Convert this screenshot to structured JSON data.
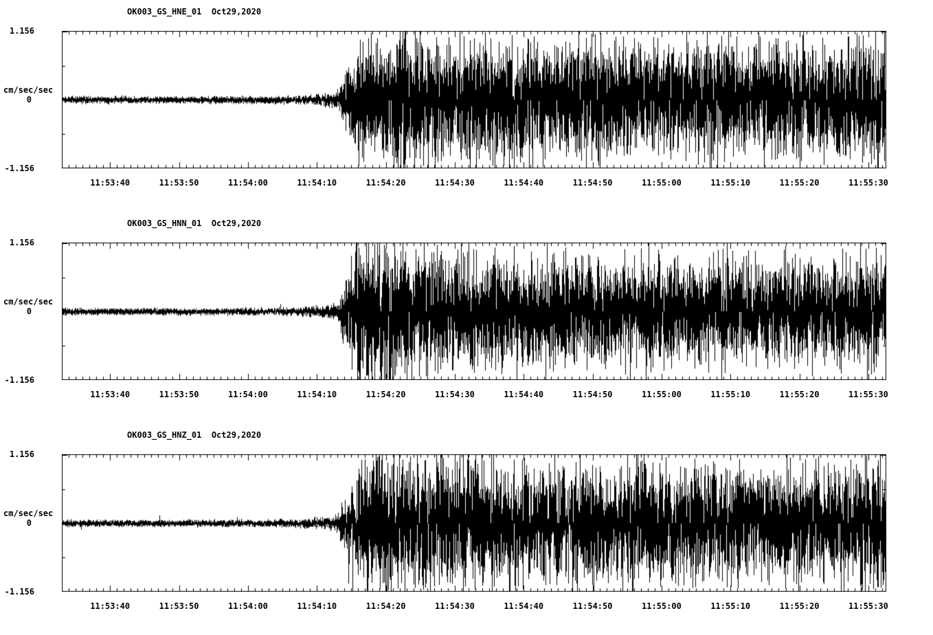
{
  "page": {
    "bg": "#ffffff",
    "fg": "#000000"
  },
  "chart_data": [
    {
      "type": "line",
      "title": "OK003_GS_HNE_01  Oct29,2020",
      "ylabel": "cm/sec/sec",
      "ylim": [
        -1.156,
        1.156
      ],
      "ytick_labels": [
        "1.156",
        "0",
        "-1.156"
      ],
      "xtick_labels": [
        "11:53:40",
        "11:53:50",
        "11:54:00",
        "11:54:10",
        "11:54:20",
        "11:54:30",
        "11:54:40",
        "11:54:50",
        "11:55:00",
        "11:55:10",
        "11:55:20",
        "11:55:30"
      ],
      "x_span_seconds": 119.5,
      "x_first_tick_offset": 7,
      "x_tick_interval": 10,
      "grid": false,
      "legend": false,
      "seed": 101,
      "envelope": {
        "t": [
          0,
          15,
          30,
          34,
          38,
          40,
          41,
          43,
          46,
          50,
          54,
          58,
          63,
          70,
          78,
          86,
          95,
          105,
          112,
          119.5
        ],
        "a": [
          0.035,
          0.032,
          0.035,
          0.04,
          0.06,
          0.09,
          0.3,
          0.55,
          0.62,
          0.7,
          0.63,
          0.6,
          0.62,
          0.58,
          0.6,
          0.55,
          0.58,
          0.6,
          0.57,
          0.68
        ]
      }
    },
    {
      "type": "line",
      "title": "OK003_GS_HNN_01  Oct29,2020",
      "ylabel": "cm/sec/sec",
      "ylim": [
        -1.156,
        1.156
      ],
      "ytick_labels": [
        "1.156",
        "0",
        "-1.156"
      ],
      "xtick_labels": [
        "11:53:40",
        "11:53:50",
        "11:54:00",
        "11:54:10",
        "11:54:20",
        "11:54:30",
        "11:54:40",
        "11:54:50",
        "11:55:00",
        "11:55:10",
        "11:55:20",
        "11:55:30"
      ],
      "x_span_seconds": 119.5,
      "x_first_tick_offset": 7,
      "x_tick_interval": 10,
      "grid": false,
      "legend": false,
      "seed": 202,
      "envelope": {
        "t": [
          0,
          15,
          30,
          34,
          38,
          40,
          41,
          43,
          46,
          50,
          54,
          58,
          63,
          70,
          78,
          86,
          95,
          105,
          112,
          119.5
        ],
        "a": [
          0.035,
          0.032,
          0.035,
          0.04,
          0.06,
          0.09,
          0.35,
          0.75,
          0.85,
          0.65,
          0.6,
          0.62,
          0.55,
          0.55,
          0.52,
          0.55,
          0.52,
          0.55,
          0.52,
          0.58
        ]
      }
    },
    {
      "type": "line",
      "title": "OK003_GS_HNZ_01  Oct29,2020",
      "ylabel": "cm/sec/sec",
      "ylim": [
        -1.156,
        1.156
      ],
      "ytick_labels": [
        "1.156",
        "0",
        "-1.156"
      ],
      "xtick_labels": [
        "11:53:40",
        "11:53:50",
        "11:54:00",
        "11:54:10",
        "11:54:20",
        "11:54:30",
        "11:54:40",
        "11:54:50",
        "11:55:00",
        "11:55:10",
        "11:55:20",
        "11:55:30"
      ],
      "x_span_seconds": 119.5,
      "x_first_tick_offset": 7,
      "x_tick_interval": 10,
      "grid": false,
      "legend": false,
      "seed": 303,
      "envelope": {
        "t": [
          0,
          15,
          30,
          34,
          38,
          40,
          41,
          43,
          46,
          50,
          54,
          58,
          63,
          70,
          78,
          86,
          95,
          105,
          112,
          119.5
        ],
        "a": [
          0.035,
          0.032,
          0.035,
          0.04,
          0.06,
          0.08,
          0.28,
          0.6,
          0.72,
          0.68,
          0.62,
          0.65,
          0.6,
          0.62,
          0.58,
          0.6,
          0.62,
          0.58,
          0.6,
          0.66
        ]
      }
    }
  ]
}
